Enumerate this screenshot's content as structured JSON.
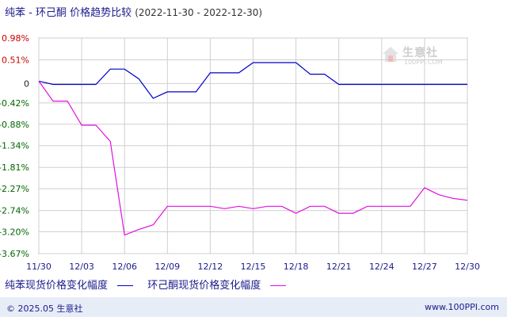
{
  "title": {
    "main": "纯苯 - 环己酮 价格趋势比较",
    "range": "(2022-11-30 - 2022-12-30)"
  },
  "watermark": {
    "brand": "生意社",
    "url": "100PPI.COM"
  },
  "footer": {
    "copyright": "© 2025.05 生意社",
    "site": "www.100PPI.com"
  },
  "colors": {
    "series1": "#0000cc",
    "series2": "#e010e0",
    "pos_tick": "#cc0000",
    "neg_tick": "#006600",
    "zero_tick": "#222222"
  },
  "chart_data": {
    "type": "line",
    "x": [
      "11/30",
      "12/01",
      "12/02",
      "12/03",
      "12/04",
      "12/05",
      "12/06",
      "12/07",
      "12/08",
      "12/09",
      "12/10",
      "12/11",
      "12/12",
      "12/13",
      "12/14",
      "12/15",
      "12/16",
      "12/17",
      "12/18",
      "12/19",
      "12/20",
      "12/21",
      "12/22",
      "12/23",
      "12/24",
      "12/25",
      "12/26",
      "12/27",
      "12/28",
      "12/29",
      "12/30"
    ],
    "x_tick_labels": [
      "11/30",
      "12/03",
      "12/06",
      "12/09",
      "12/12",
      "12/15",
      "12/18",
      "12/21",
      "12/24",
      "12/27",
      "12/30"
    ],
    "y_ticks": [
      0.98,
      0.51,
      0,
      -0.42,
      -0.88,
      -1.34,
      -1.81,
      -2.27,
      -2.74,
      -3.2,
      -3.67
    ],
    "y_tick_labels": [
      "0.98%",
      "0.51%",
      "0",
      "-0.42%",
      "-0.88%",
      "-1.34%",
      "-1.81%",
      "-2.27%",
      "-2.74%",
      "-3.20%",
      "-3.67%"
    ],
    "ylim": [
      -3.67,
      0.98
    ],
    "series": [
      {
        "name": "纯苯现货价格变化幅度",
        "values": [
          0.05,
          -0.02,
          -0.02,
          -0.02,
          -0.02,
          0.31,
          0.31,
          0.1,
          -0.32,
          -0.18,
          -0.18,
          -0.18,
          0.23,
          0.23,
          0.23,
          0.45,
          0.45,
          0.45,
          0.45,
          0.2,
          0.2,
          -0.02,
          -0.02,
          -0.02,
          -0.02,
          -0.02,
          -0.02,
          -0.02,
          -0.02,
          -0.02,
          -0.02
        ]
      },
      {
        "name": "环己酮现货价格变化幅度",
        "values": [
          0.05,
          -0.38,
          -0.38,
          -0.9,
          -0.9,
          -1.25,
          -3.27,
          -3.15,
          -3.05,
          -2.65,
          -2.65,
          -2.65,
          -2.65,
          -2.7,
          -2.65,
          -2.7,
          -2.65,
          -2.65,
          -2.8,
          -2.65,
          -2.65,
          -2.8,
          -2.8,
          -2.65,
          -2.65,
          -2.65,
          -2.65,
          -2.25,
          -2.4,
          -2.48,
          -2.52
        ]
      }
    ]
  }
}
